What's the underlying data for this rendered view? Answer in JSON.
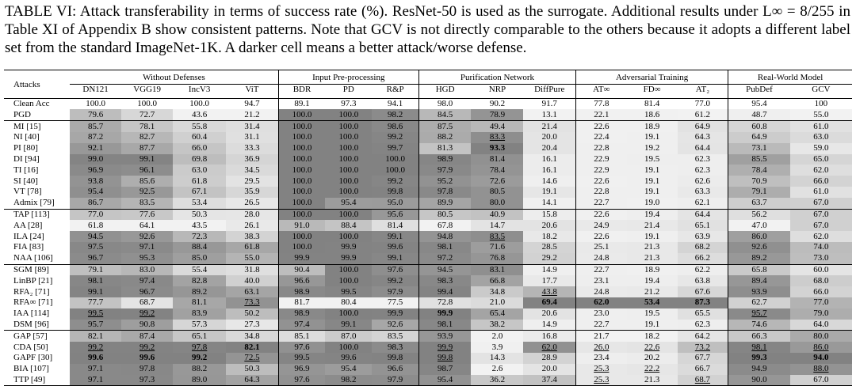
{
  "table": {
    "caption": "TABLE VI: Attack transferability in terms of success rate (%). ResNet-50 is used as the surrogate. Additional results under L∞ = 8/255 in Table XI of Appendix B show consistent patterns. Note that GCV is not directly comparable to the others because it adopts a different label set from the standard ImageNet-1K. A darker cell means a better attack/worse defense.",
    "row_header": "Attacks",
    "groups": [
      {
        "label": "Without Defenses",
        "columns": [
          "DN121",
          "VGG19",
          "IncV3",
          "ViT"
        ]
      },
      {
        "label": "Input Pre-processing",
        "columns": [
          "BDR",
          "PD",
          "R&P"
        ]
      },
      {
        "label": "Purification Network",
        "columns": [
          "HGD",
          "NRP",
          "DiffPure"
        ]
      },
      {
        "label": "Adversarial Training",
        "columns": [
          "AT∞",
          "FD∞",
          "AT₂"
        ]
      },
      {
        "label": "Real-World Model",
        "columns": [
          "PubDef",
          "GCV"
        ]
      }
    ],
    "sections": [
      [
        {
          "attack": "Clean Acc",
          "shading": false,
          "cells": [
            "100.0",
            "100.0",
            "100.0",
            "94.7",
            "89.1",
            "97.3",
            "94.1",
            "98.0",
            "90.2",
            "91.7",
            "77.8",
            "81.4",
            "77.0",
            "95.4",
            "100"
          ]
        },
        {
          "attack": "PGD",
          "cells": [
            "79.6",
            "72.7",
            "43.6",
            "21.2",
            "100.0",
            "100.0",
            "98.2",
            "84.5",
            "78.9",
            "13.1",
            "22.1",
            "18.6",
            "61.2",
            "48.7",
            "55.0"
          ]
        }
      ],
      [
        {
          "attack": "MI [15]",
          "cells": [
            "85.7",
            "78.1",
            "55.8",
            "31.4",
            "100.0",
            "100.0",
            "98.6",
            "87.5",
            "49.4",
            "21.4",
            "22.6",
            "18.9",
            "64.9",
            "60.8",
            "61.0"
          ]
        },
        {
          "attack": "NI [40]",
          "cells": [
            "87.2",
            "82.7",
            "60.4",
            "31.1",
            "100.0",
            "100.0",
            "99.2",
            "88.2",
            {
              "text": "83.3",
              "underline": true
            },
            "20.0",
            "22.4",
            "19.1",
            "64.3",
            "64.9",
            "63.0"
          ]
        },
        {
          "attack": "PI [80]",
          "cells": [
            "92.1",
            "87.7",
            "66.0",
            "33.3",
            "100.0",
            "100.0",
            "99.7",
            "81.3",
            {
              "text": "93.3",
              "bold": true
            },
            "20.4",
            "22.8",
            "19.2",
            "64.4",
            "73.1",
            "59.0"
          ]
        },
        {
          "attack": "DI [94]",
          "cells": [
            "99.0",
            "99.1",
            "69.8",
            "36.9",
            "100.0",
            "100.0",
            "100.0",
            "98.9",
            "81.4",
            "16.1",
            "22.9",
            "19.5",
            "62.3",
            "85.5",
            "65.0"
          ]
        },
        {
          "attack": "TI [16]",
          "cells": [
            "96.9",
            "96.1",
            "63.0",
            "34.5",
            "100.0",
            "100.0",
            "100.0",
            "97.9",
            "78.4",
            "16.1",
            "22.9",
            "19.1",
            "62.3",
            "78.4",
            "62.0"
          ]
        },
        {
          "attack": "SI [40]",
          "cells": [
            "93.8",
            "85.6",
            "61.8",
            "29.5",
            "100.0",
            "100.0",
            "99.2",
            "95.2",
            "72.6",
            "14.6",
            "22.6",
            "19.1",
            "62.6",
            "70.9",
            "66.0"
          ]
        },
        {
          "attack": "VT [78]",
          "cells": [
            "95.4",
            "92.5",
            "67.1",
            "35.9",
            "100.0",
            "100.0",
            "99.8",
            "97.8",
            "80.5",
            "19.1",
            "22.8",
            "19.1",
            "63.3",
            "79.1",
            "61.0"
          ]
        },
        {
          "attack": "Admix [79]",
          "cells": [
            "86.7",
            "83.5",
            "53.4",
            "26.5",
            "100.0",
            "95.4",
            "95.0",
            "89.9",
            "80.0",
            "14.1",
            "22.7",
            "19.0",
            "62.1",
            "63.7",
            "67.0"
          ]
        }
      ],
      [
        {
          "attack": "TAP [113]",
          "cells": [
            "77.0",
            "77.6",
            "50.3",
            "28.0",
            "100.0",
            "100.0",
            "95.6",
            "80.5",
            "40.9",
            "15.8",
            "22.6",
            "19.4",
            "64.4",
            "56.2",
            "67.0"
          ]
        },
        {
          "attack": "AA [28]",
          "cells": [
            "61.8",
            "64.1",
            "43.5",
            "26.1",
            "91.0",
            "88.4",
            "81.4",
            "67.8",
            "14.7",
            "20.6",
            "24.9",
            "21.4",
            "65.1",
            "47.0",
            "67.0"
          ]
        },
        {
          "attack": "ILA [24]",
          "cells": [
            "94.5",
            "92.6",
            "72.3",
            "38.3",
            "100.0",
            "100.0",
            "99.1",
            "94.8",
            {
              "text": "83.5",
              "underline": true
            },
            "18.2",
            "22.6",
            "19.1",
            "63.9",
            "86.0",
            "62.0"
          ]
        },
        {
          "attack": "FIA [83]",
          "cells": [
            "97.5",
            "97.1",
            "88.4",
            "61.8",
            "100.0",
            "99.9",
            "99.6",
            "98.1",
            "71.6",
            "28.5",
            "25.1",
            "21.3",
            "68.2",
            "92.6",
            "74.0"
          ]
        },
        {
          "attack": "NAA [106]",
          "cells": [
            "96.7",
            "95.3",
            "85.0",
            "55.0",
            "99.9",
            "99.9",
            "99.1",
            "97.2",
            "76.8",
            "29.2",
            "24.8",
            "21.3",
            "66.2",
            "89.2",
            "73.0"
          ]
        }
      ],
      [
        {
          "attack": "SGM [89]",
          "cells": [
            "79.1",
            "83.0",
            "55.4",
            "31.8",
            "90.4",
            "100.0",
            "97.6",
            "94.5",
            "83.1",
            "14.9",
            "22.7",
            "18.9",
            "62.2",
            "65.8",
            "60.0"
          ]
        },
        {
          "attack": "LinBP [21]",
          "cells": [
            "98.1",
            "97.4",
            "82.8",
            "40.0",
            "96.6",
            "100.0",
            "99.2",
            "98.3",
            "66.8",
            "17.7",
            "23.1",
            "19.4",
            "63.8",
            "89.4",
            "68.0"
          ]
        },
        {
          "attack": "RFA₂ [71]",
          "cells": [
            "99.1",
            "96.7",
            "89.2",
            "63.1",
            "98.9",
            "99.5",
            "97.9",
            "99.4",
            "34.8",
            {
              "text": "43.8",
              "underline": true
            },
            "24.8",
            "21.2",
            "67.6",
            "93.9",
            "66.0"
          ]
        },
        {
          "attack": "RFA∞ [71]",
          "cells": [
            "77.7",
            "68.7",
            "81.1",
            {
              "text": "73.3",
              "underline": true
            },
            "81.7",
            "80.4",
            "77.5",
            "72.8",
            "21.0",
            {
              "text": "69.4",
              "bold": true
            },
            {
              "text": "62.0",
              "bold": true
            },
            {
              "text": "53.4",
              "bold": true
            },
            {
              "text": "87.3",
              "bold": true
            },
            "62.7",
            "77.0"
          ]
        },
        {
          "attack": "IAA [114]",
          "cells": [
            {
              "text": "99.5",
              "underline": true
            },
            {
              "text": "99.2",
              "underline": true
            },
            "83.9",
            "50.2",
            "98.9",
            "100.0",
            "99.9",
            {
              "text": "99.9",
              "bold": true
            },
            "65.4",
            "20.6",
            "23.0",
            "19.5",
            "65.5",
            {
              "text": "95.7",
              "underline": true
            },
            "79.0"
          ]
        },
        {
          "attack": "DSM [96]",
          "cells": [
            "95.7",
            "90.8",
            "57.3",
            "27.3",
            "97.4",
            "99.1",
            "92.6",
            "98.1",
            "38.2",
            "14.9",
            "22.7",
            "19.1",
            "62.3",
            "74.6",
            "64.0"
          ]
        }
      ],
      [
        {
          "attack": "GAP [57]",
          "cells": [
            "82.1",
            "87.4",
            "65.1",
            "34.8",
            "85.1",
            "87.0",
            "83.5",
            "93.9",
            "2.0",
            "16.8",
            "21.7",
            "18.2",
            "64.2",
            "66.3",
            "80.0"
          ]
        },
        {
          "attack": "CDA [50]",
          "cells": [
            {
              "text": "99.2",
              "underline": true
            },
            {
              "text": "99.2",
              "underline": true
            },
            {
              "text": "97.8",
              "underline": true
            },
            {
              "text": "82.1",
              "bold": true
            },
            "97.6",
            "100.0",
            "98.3",
            {
              "text": "99.9",
              "underline": true
            },
            "3.9",
            {
              "text": "62.0",
              "underline": true
            },
            {
              "text": "26.0",
              "underline": true
            },
            {
              "text": "22.6",
              "underline": true
            },
            {
              "text": "73.2",
              "underline": true
            },
            {
              "text": "98.1",
              "underline": true
            },
            {
              "text": "86.0",
              "underline": true
            }
          ]
        },
        {
          "attack": "GAPF [30]",
          "cells": [
            {
              "text": "99.6",
              "bold": true
            },
            {
              "text": "99.6",
              "bold": true
            },
            {
              "text": "99.2",
              "bold": true
            },
            {
              "text": "72.5",
              "underline": true
            },
            "99.5",
            "99.6",
            "99.8",
            {
              "text": "99.8",
              "underline": true
            },
            "14.3",
            "28.9",
            "23.4",
            "20.2",
            "67.7",
            {
              "text": "99.3",
              "bold": true
            },
            {
              "text": "94.0",
              "bold": true
            }
          ]
        },
        {
          "attack": "BIA [107]",
          "cells": [
            "97.1",
            "97.8",
            "88.2",
            "50.3",
            "96.9",
            "95.4",
            "96.6",
            "98.7",
            "2.6",
            "20.0",
            {
              "text": "25.3",
              "underline": true
            },
            {
              "text": "22.2",
              "underline": true
            },
            "66.7",
            "94.9",
            {
              "text": "88.0",
              "underline": true
            }
          ]
        },
        {
          "attack": "TTP [49]",
          "cells": [
            "97.1",
            "97.3",
            "89.0",
            "64.3",
            "97.6",
            "98.2",
            "97.9",
            "95.4",
            "36.2",
            "37.4",
            {
              "text": "25.3",
              "underline": true
            },
            "21.3",
            {
              "text": "68.7",
              "underline": true
            },
            "90.0",
            "67.0"
          ]
        }
      ]
    ]
  }
}
